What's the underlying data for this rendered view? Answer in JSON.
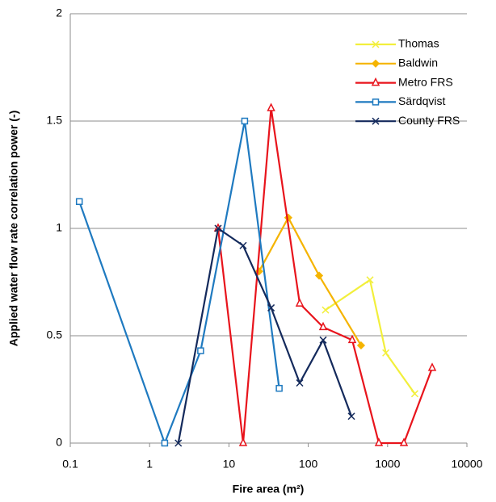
{
  "chart_data": {
    "type": "line",
    "xlabel": "Fire area (m²)",
    "ylabel": "Applied water flow rate correlation power (-)",
    "xscale": "log",
    "xlim": [
      0.1,
      10000
    ],
    "xticks": [
      0.1,
      1,
      10,
      100,
      1000,
      10000
    ],
    "ylim": [
      0,
      2
    ],
    "yticks": [
      0,
      0.5,
      1,
      1.5,
      2
    ],
    "grid": true,
    "legend": "upper right",
    "series": [
      {
        "name": "Thomas",
        "color": "#f2ef3c",
        "marker": "x",
        "x": [
          165,
          600,
          950,
          2200
        ],
        "values": [
          0.62,
          0.76,
          0.42,
          0.23
        ]
      },
      {
        "name": "Baldwin",
        "color": "#f5b400",
        "marker": "diamond",
        "x": [
          24,
          56,
          137,
          463
        ],
        "values": [
          0.8,
          1.05,
          0.78,
          0.455
        ]
      },
      {
        "name": "Metro FRS",
        "color": "#e8141c",
        "marker": "triangle",
        "x": [
          7.3,
          15.1,
          34,
          78,
          154,
          358,
          776,
          1606,
          3650
        ],
        "values": [
          1.0,
          0,
          1.56,
          0.65,
          0.54,
          0.48,
          0,
          0,
          0.35
        ]
      },
      {
        "name": "Särdqvist",
        "color": "#1f7ac0",
        "marker": "square",
        "x": [
          0.13,
          1.55,
          4.4,
          15.8,
          43
        ],
        "values": [
          1.125,
          0,
          0.43,
          1.5,
          0.255
        ]
      },
      {
        "name": "County FRS",
        "color": "#142a5c",
        "marker": "x",
        "x": [
          2.3,
          7.3,
          15.1,
          34,
          78,
          154,
          350
        ],
        "values": [
          0,
          1.0,
          0.92,
          0.63,
          0.28,
          0.48,
          0.125
        ]
      }
    ]
  }
}
